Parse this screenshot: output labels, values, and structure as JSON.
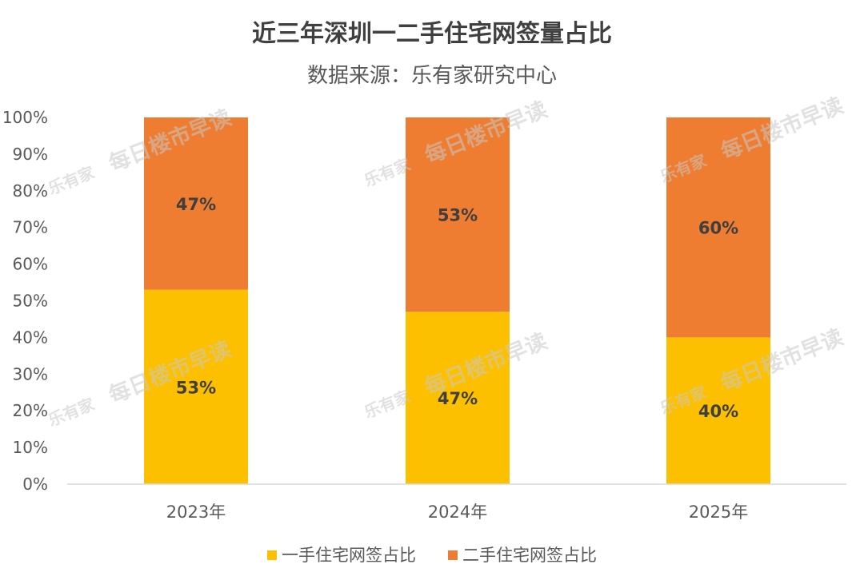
{
  "chart_data": {
    "type": "bar",
    "stacked": true,
    "title": "近三年深圳一二手住宅网签量占比",
    "subtitle": "数据来源：乐有家研究中心",
    "categories": [
      "2023年",
      "2024年",
      "2025年"
    ],
    "series": [
      {
        "name": "一手住宅网签占比",
        "values": [
          53,
          47,
          40
        ],
        "labels": [
          "53%",
          "47%",
          "40%"
        ],
        "color": "#fcc000"
      },
      {
        "name": "二手住宅网签占比",
        "values": [
          47,
          53,
          60
        ],
        "labels": [
          "47%",
          "53%",
          "60%"
        ],
        "color": "#ee7d31"
      }
    ],
    "yticks": [
      "0%",
      "10%",
      "20%",
      "30%",
      "40%",
      "50%",
      "60%",
      "70%",
      "80%",
      "90%",
      "100%"
    ],
    "ylim": [
      0,
      100
    ],
    "grid": false,
    "legend": "bottom"
  },
  "watermark": {
    "text": "每日楼市早读",
    "logo": "乐有家"
  }
}
